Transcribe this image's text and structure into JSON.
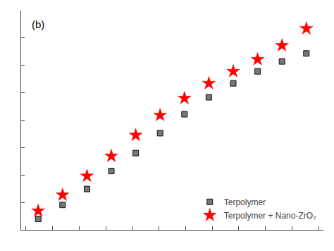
{
  "chart_data": {
    "type": "scatter",
    "series": [
      {
        "name": "Terpolymer",
        "color": "#111111",
        "marker": "square",
        "x": [
          1,
          2,
          3,
          4,
          5,
          6,
          7,
          8,
          9,
          10,
          11,
          12
        ],
        "values": [
          0.55,
          1.25,
          2.05,
          2.95,
          3.85,
          4.85,
          5.8,
          6.65,
          7.35,
          7.95,
          8.45,
          8.85
        ]
      },
      {
        "name": "Terpolymer + Nano-ZrO₂",
        "color": "#ff0000",
        "marker": "star",
        "x": [
          1,
          2,
          3,
          4,
          5,
          6,
          7,
          8,
          9,
          10,
          11,
          12
        ],
        "values": [
          0.95,
          1.75,
          2.7,
          3.7,
          4.75,
          5.75,
          6.6,
          7.35,
          7.95,
          8.55,
          9.25,
          10.1
        ]
      }
    ],
    "annotations": [
      "(b)"
    ],
    "xlim": [
      0.3,
      12.7
    ],
    "xticks": [
      0.5,
      1.5909090909090908,
      2.6818181818181817,
      3.772727272727273,
      4.863636363636363,
      5.954545454545455,
      7.045454545454545,
      8.136363636363637,
      9.227272727272727,
      10.318181818181818,
      11.409090909090908,
      12.5
    ],
    "ylim": [
      0.0,
      11.0
    ],
    "yticks": [
      0,
      1.375,
      2.75,
      4.125,
      5.5,
      6.875,
      8.25,
      9.625,
      11
    ],
    "tick_labels": false,
    "grid": false,
    "legend": "lower right"
  }
}
